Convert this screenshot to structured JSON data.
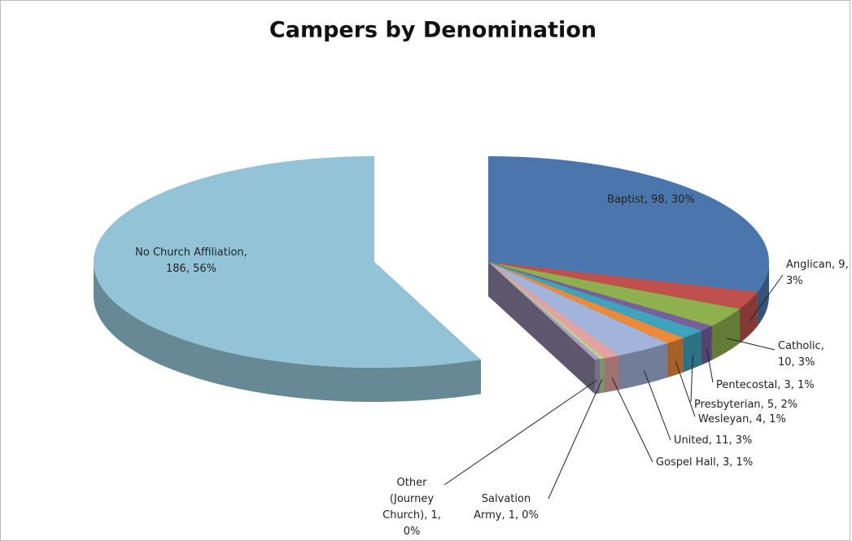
{
  "chart_data": {
    "type": "pie",
    "title": "Campers by Denomination",
    "categories": [
      "Baptist",
      "Anglican",
      "Catholic",
      "Pentecostal",
      "Presbyterian",
      "Wesleyan",
      "United",
      "Gospel Hall",
      "Salvation Army",
      "Other (Journey Church)",
      "No Church Affiliation"
    ],
    "values": [
      98,
      9,
      10,
      3,
      5,
      4,
      11,
      3,
      1,
      1,
      186
    ],
    "value_labels": [
      "Baptist, 98, 30%",
      "Anglican, 9, 3%",
      "Catholic, 10, 3%",
      "Pentecostal, 3, 1%",
      "Presbyterian, 5, 2%",
      "Wesleyan, 4, 1%",
      "United, 11, 3%",
      "Gospel Hall, 3, 1%",
      "Salvation Army, 1, 0%",
      "Other (Journey Church), 1, 0%",
      "No Church Affiliation, 186, 56%"
    ],
    "colors": [
      "#4a76ad",
      "#c0504d",
      "#8fb04f",
      "#7a5f9e",
      "#3fa3bd",
      "#ed8a3a",
      "#a3b4da",
      "#e4a3a3",
      "#bcd194",
      "#aa9dc4",
      "#93c3d6"
    ]
  }
}
